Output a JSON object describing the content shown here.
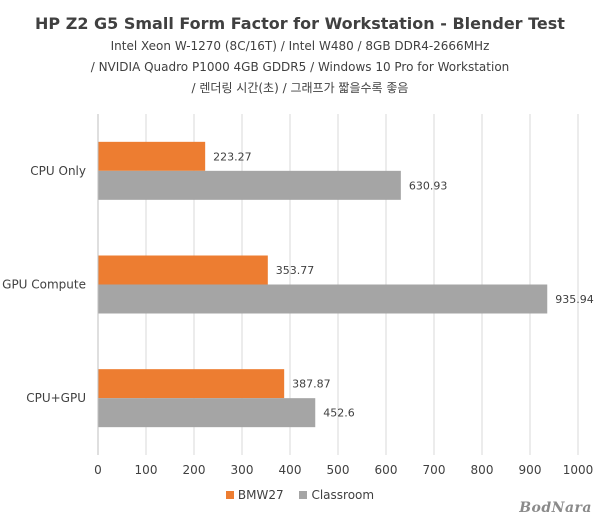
{
  "chart_data": {
    "type": "bar",
    "orientation": "horizontal",
    "title": "HP Z2 G5 Small Form Factor for Workstation - Blender Test",
    "subtitle_lines": [
      "Intel Xeon W-1270 (8C/16T) / Intel W480 / 8GB DDR4-2666MHz",
      "/ NVIDIA Quadro P1000 4GB GDDR5 / Windows 10 Pro for Workstation",
      "/ 렌더링 시간(초) / 그래프가 짧을수록 좋음"
    ],
    "categories": [
      "CPU Only",
      "GPU Compute",
      "CPU+GPU"
    ],
    "series": [
      {
        "name": "BMW27",
        "color": "#ED7D31",
        "values": [
          223.27,
          353.77,
          387.87
        ]
      },
      {
        "name": "Classroom",
        "color": "#A5A5A5",
        "values": [
          630.93,
          935.94,
          452.6
        ]
      }
    ],
    "xlim": [
      0,
      1000
    ],
    "xticks": [
      0,
      100,
      200,
      300,
      400,
      500,
      600,
      700,
      800,
      900,
      1000
    ],
    "grid": true,
    "legend_position": "bottom"
  },
  "watermark": "BodNara"
}
